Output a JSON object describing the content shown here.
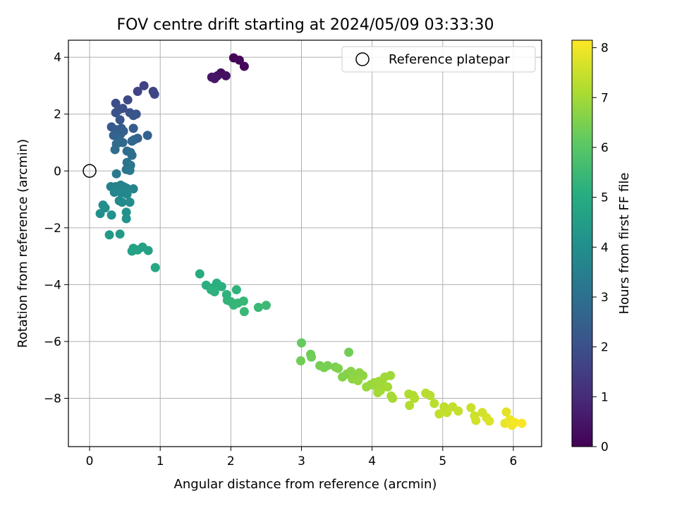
{
  "chart_data": {
    "type": "scatter",
    "title": "FOV centre drift starting at 2024/05/09 03:33:30",
    "xlabel": "Angular distance from reference (arcmin)",
    "ylabel": "Rotation from reference (arcmin)",
    "xlim": [
      -0.3,
      6.4
    ],
    "ylim": [
      -9.7,
      4.6
    ],
    "x_ticks": [
      0,
      1,
      2,
      3,
      4,
      5,
      6
    ],
    "x_tick_labels": [
      "0",
      "1",
      "2",
      "3",
      "4",
      "5",
      "6"
    ],
    "y_ticks": [
      4,
      2,
      0,
      -2,
      -4,
      -6,
      -8
    ],
    "y_tick_labels": [
      "4",
      "2",
      "0",
      "−2",
      "−4",
      "−6",
      "−8"
    ],
    "grid": true,
    "legend": {
      "position": "top-right",
      "entries": [
        "Reference platepar"
      ]
    },
    "reference_point": {
      "x": 0,
      "y": 0,
      "label": "Reference platepar"
    },
    "colorbar": {
      "label": "Hours from first FF file",
      "colormap": "viridis",
      "range": [
        0,
        8.15
      ],
      "ticks": [
        0,
        1,
        2,
        3,
        4,
        5,
        6,
        7,
        8
      ],
      "tick_labels": [
        "0",
        "1",
        "2",
        "3",
        "4",
        "5",
        "6",
        "7",
        "8"
      ]
    },
    "series": [
      {
        "points": [
          {
            "x": 2.04,
            "y": 3.98,
            "c": 0.1
          },
          {
            "x": 2.12,
            "y": 3.9,
            "c": 0.15
          },
          {
            "x": 2.19,
            "y": 3.68,
            "c": 0.2
          },
          {
            "x": 1.86,
            "y": 3.45,
            "c": 0.3
          },
          {
            "x": 1.93,
            "y": 3.35,
            "c": 0.35
          },
          {
            "x": 1.81,
            "y": 3.35,
            "c": 0.4
          },
          {
            "x": 1.73,
            "y": 3.3,
            "c": 0.45
          },
          {
            "x": 1.77,
            "y": 3.25,
            "c": 0.5
          },
          {
            "x": 0.77,
            "y": 3.0,
            "c": 1.6
          },
          {
            "x": 0.68,
            "y": 2.8,
            "c": 1.65
          },
          {
            "x": 0.9,
            "y": 2.8,
            "c": 1.7
          },
          {
            "x": 0.92,
            "y": 2.7,
            "c": 1.75
          },
          {
            "x": 0.54,
            "y": 2.5,
            "c": 1.8
          },
          {
            "x": 0.37,
            "y": 2.38,
            "c": 1.9
          },
          {
            "x": 0.47,
            "y": 2.2,
            "c": 1.95
          },
          {
            "x": 0.41,
            "y": 2.15,
            "c": 2.0
          },
          {
            "x": 0.57,
            "y": 2.05,
            "c": 2.05
          },
          {
            "x": 0.37,
            "y": 2.05,
            "c": 2.1
          },
          {
            "x": 0.66,
            "y": 2.0,
            "c": 2.1
          },
          {
            "x": 0.62,
            "y": 1.95,
            "c": 2.15
          },
          {
            "x": 0.43,
            "y": 1.8,
            "c": 2.2
          },
          {
            "x": 0.31,
            "y": 1.55,
            "c": 2.3
          },
          {
            "x": 0.45,
            "y": 1.5,
            "c": 2.35
          },
          {
            "x": 0.38,
            "y": 1.45,
            "c": 2.4
          },
          {
            "x": 0.62,
            "y": 1.5,
            "c": 2.4
          },
          {
            "x": 0.48,
            "y": 1.4,
            "c": 2.45
          },
          {
            "x": 0.44,
            "y": 1.3,
            "c": 2.5
          },
          {
            "x": 0.34,
            "y": 1.25,
            "c": 2.55
          },
          {
            "x": 0.82,
            "y": 1.25,
            "c": 2.55
          },
          {
            "x": 0.4,
            "y": 1.2,
            "c": 2.6
          },
          {
            "x": 0.68,
            "y": 1.15,
            "c": 2.6
          },
          {
            "x": 0.63,
            "y": 1.1,
            "c": 2.65
          },
          {
            "x": 0.6,
            "y": 1.05,
            "c": 2.7
          },
          {
            "x": 0.42,
            "y": 1.0,
            "c": 2.75
          },
          {
            "x": 0.47,
            "y": 1.0,
            "c": 2.75
          },
          {
            "x": 0.38,
            "y": 0.95,
            "c": 2.8
          },
          {
            "x": 0.36,
            "y": 0.75,
            "c": 2.85
          },
          {
            "x": 0.53,
            "y": 0.7,
            "c": 2.9
          },
          {
            "x": 0.58,
            "y": 0.65,
            "c": 2.95
          },
          {
            "x": 0.6,
            "y": 0.55,
            "c": 3.0
          },
          {
            "x": 0.53,
            "y": 0.3,
            "c": 3.1
          },
          {
            "x": 0.58,
            "y": 0.2,
            "c": 3.15
          },
          {
            "x": 0.52,
            "y": 0.05,
            "c": 3.2
          },
          {
            "x": 0.57,
            "y": 0.02,
            "c": 3.25
          },
          {
            "x": 0.38,
            "y": -0.1,
            "c": 3.3
          },
          {
            "x": 0.3,
            "y": -0.55,
            "c": 3.55
          },
          {
            "x": 0.37,
            "y": -0.55,
            "c": 3.55
          },
          {
            "x": 0.44,
            "y": -0.5,
            "c": 3.6
          },
          {
            "x": 0.48,
            "y": -0.55,
            "c": 3.6
          },
          {
            "x": 0.52,
            "y": -0.6,
            "c": 3.65
          },
          {
            "x": 0.62,
            "y": -0.63,
            "c": 3.65
          },
          {
            "x": 0.38,
            "y": -0.7,
            "c": 3.7
          },
          {
            "x": 0.35,
            "y": -0.75,
            "c": 3.7
          },
          {
            "x": 0.45,
            "y": -0.78,
            "c": 3.75
          },
          {
            "x": 0.53,
            "y": -0.82,
            "c": 3.75
          },
          {
            "x": 0.42,
            "y": -1.05,
            "c": 3.85
          },
          {
            "x": 0.46,
            "y": -1.1,
            "c": 3.85
          },
          {
            "x": 0.57,
            "y": -1.1,
            "c": 3.9
          },
          {
            "x": 0.19,
            "y": -1.2,
            "c": 3.95
          },
          {
            "x": 0.22,
            "y": -1.3,
            "c": 4.0
          },
          {
            "x": 0.15,
            "y": -1.5,
            "c": 4.05
          },
          {
            "x": 0.31,
            "y": -1.55,
            "c": 4.1
          },
          {
            "x": 0.52,
            "y": -1.45,
            "c": 4.1
          },
          {
            "x": 0.52,
            "y": -1.68,
            "c": 4.15
          },
          {
            "x": 0.28,
            "y": -2.25,
            "c": 4.4
          },
          {
            "x": 0.43,
            "y": -2.22,
            "c": 4.4
          },
          {
            "x": 0.75,
            "y": -2.68,
            "c": 4.6
          },
          {
            "x": 0.62,
            "y": -2.72,
            "c": 4.6
          },
          {
            "x": 0.68,
            "y": -2.78,
            "c": 4.65
          },
          {
            "x": 0.6,
            "y": -2.82,
            "c": 4.65
          },
          {
            "x": 0.83,
            "y": -2.8,
            "c": 4.65
          },
          {
            "x": 0.93,
            "y": -3.4,
            "c": 4.85
          },
          {
            "x": 1.56,
            "y": -3.62,
            "c": 5.0
          },
          {
            "x": 1.65,
            "y": -4.02,
            "c": 5.1
          },
          {
            "x": 1.73,
            "y": -4.12,
            "c": 5.15
          },
          {
            "x": 1.8,
            "y": -3.95,
            "c": 5.1
          },
          {
            "x": 1.87,
            "y": -4.07,
            "c": 5.15
          },
          {
            "x": 1.77,
            "y": -4.25,
            "c": 5.2
          },
          {
            "x": 1.72,
            "y": -4.18,
            "c": 5.2
          },
          {
            "x": 1.94,
            "y": -4.35,
            "c": 5.25
          },
          {
            "x": 1.95,
            "y": -4.55,
            "c": 5.3
          },
          {
            "x": 2.0,
            "y": -4.6,
            "c": 5.3
          },
          {
            "x": 2.04,
            "y": -4.72,
            "c": 5.35
          },
          {
            "x": 2.1,
            "y": -4.65,
            "c": 5.35
          },
          {
            "x": 2.18,
            "y": -4.58,
            "c": 5.4
          },
          {
            "x": 2.19,
            "y": -4.95,
            "c": 5.45
          },
          {
            "x": 2.08,
            "y": -4.18,
            "c": 5.25
          },
          {
            "x": 2.39,
            "y": -4.8,
            "c": 5.45
          },
          {
            "x": 2.5,
            "y": -4.73,
            "c": 5.5
          },
          {
            "x": 3.0,
            "y": -6.05,
            "c": 6.2
          },
          {
            "x": 2.99,
            "y": -6.68,
            "c": 6.35
          },
          {
            "x": 3.13,
            "y": -6.45,
            "c": 6.3
          },
          {
            "x": 3.14,
            "y": -6.55,
            "c": 6.35
          },
          {
            "x": 3.26,
            "y": -6.85,
            "c": 6.4
          },
          {
            "x": 3.32,
            "y": -6.92,
            "c": 6.45
          },
          {
            "x": 3.37,
            "y": -6.85,
            "c": 6.45
          },
          {
            "x": 3.48,
            "y": -6.9,
            "c": 6.5
          },
          {
            "x": 3.52,
            "y": -6.95,
            "c": 6.55
          },
          {
            "x": 3.58,
            "y": -7.25,
            "c": 6.6
          },
          {
            "x": 3.67,
            "y": -6.38,
            "c": 6.35
          },
          {
            "x": 3.64,
            "y": -7.15,
            "c": 6.6
          },
          {
            "x": 3.7,
            "y": -7.05,
            "c": 6.65
          },
          {
            "x": 3.76,
            "y": -7.2,
            "c": 6.7
          },
          {
            "x": 3.82,
            "y": -7.1,
            "c": 6.7
          },
          {
            "x": 3.87,
            "y": -7.2,
            "c": 6.75
          },
          {
            "x": 3.72,
            "y": -7.32,
            "c": 6.75
          },
          {
            "x": 3.8,
            "y": -7.38,
            "c": 6.8
          },
          {
            "x": 3.92,
            "y": -7.6,
            "c": 6.85
          },
          {
            "x": 3.98,
            "y": -7.52,
            "c": 6.85
          },
          {
            "x": 4.03,
            "y": -7.45,
            "c": 6.9
          },
          {
            "x": 4.07,
            "y": -7.62,
            "c": 6.9
          },
          {
            "x": 4.1,
            "y": -7.4,
            "c": 6.95
          },
          {
            "x": 4.15,
            "y": -7.5,
            "c": 6.95
          },
          {
            "x": 4.08,
            "y": -7.8,
            "c": 7.0
          },
          {
            "x": 4.12,
            "y": -7.72,
            "c": 7.0
          },
          {
            "x": 4.18,
            "y": -7.25,
            "c": 6.95
          },
          {
            "x": 4.26,
            "y": -7.2,
            "c": 6.95
          },
          {
            "x": 4.22,
            "y": -7.6,
            "c": 7.0
          },
          {
            "x": 4.27,
            "y": -7.92,
            "c": 7.05
          },
          {
            "x": 4.29,
            "y": -8.0,
            "c": 7.05
          },
          {
            "x": 4.52,
            "y": -7.85,
            "c": 7.15
          },
          {
            "x": 4.58,
            "y": -7.9,
            "c": 7.15
          },
          {
            "x": 4.6,
            "y": -8.0,
            "c": 7.2
          },
          {
            "x": 4.53,
            "y": -8.25,
            "c": 7.2
          },
          {
            "x": 4.76,
            "y": -7.82,
            "c": 7.25
          },
          {
            "x": 4.82,
            "y": -7.9,
            "c": 7.25
          },
          {
            "x": 4.88,
            "y": -8.18,
            "c": 7.3
          },
          {
            "x": 4.95,
            "y": -8.55,
            "c": 7.4
          },
          {
            "x": 5.02,
            "y": -8.3,
            "c": 7.35
          },
          {
            "x": 5.06,
            "y": -8.5,
            "c": 7.4
          },
          {
            "x": 5.14,
            "y": -8.3,
            "c": 7.4
          },
          {
            "x": 5.22,
            "y": -8.45,
            "c": 7.45
          },
          {
            "x": 5.4,
            "y": -8.33,
            "c": 7.5
          },
          {
            "x": 5.45,
            "y": -8.62,
            "c": 7.55
          },
          {
            "x": 5.47,
            "y": -8.78,
            "c": 7.6
          },
          {
            "x": 5.56,
            "y": -8.5,
            "c": 7.6
          },
          {
            "x": 5.62,
            "y": -8.68,
            "c": 7.65
          },
          {
            "x": 5.66,
            "y": -8.8,
            "c": 7.7
          },
          {
            "x": 5.9,
            "y": -8.48,
            "c": 7.8
          },
          {
            "x": 5.88,
            "y": -8.88,
            "c": 7.9
          },
          {
            "x": 5.95,
            "y": -8.75,
            "c": 7.95
          },
          {
            "x": 5.98,
            "y": -8.95,
            "c": 8.0
          },
          {
            "x": 6.02,
            "y": -8.85,
            "c": 8.05
          },
          {
            "x": 6.12,
            "y": -8.88,
            "c": 8.1
          }
        ]
      }
    ]
  }
}
